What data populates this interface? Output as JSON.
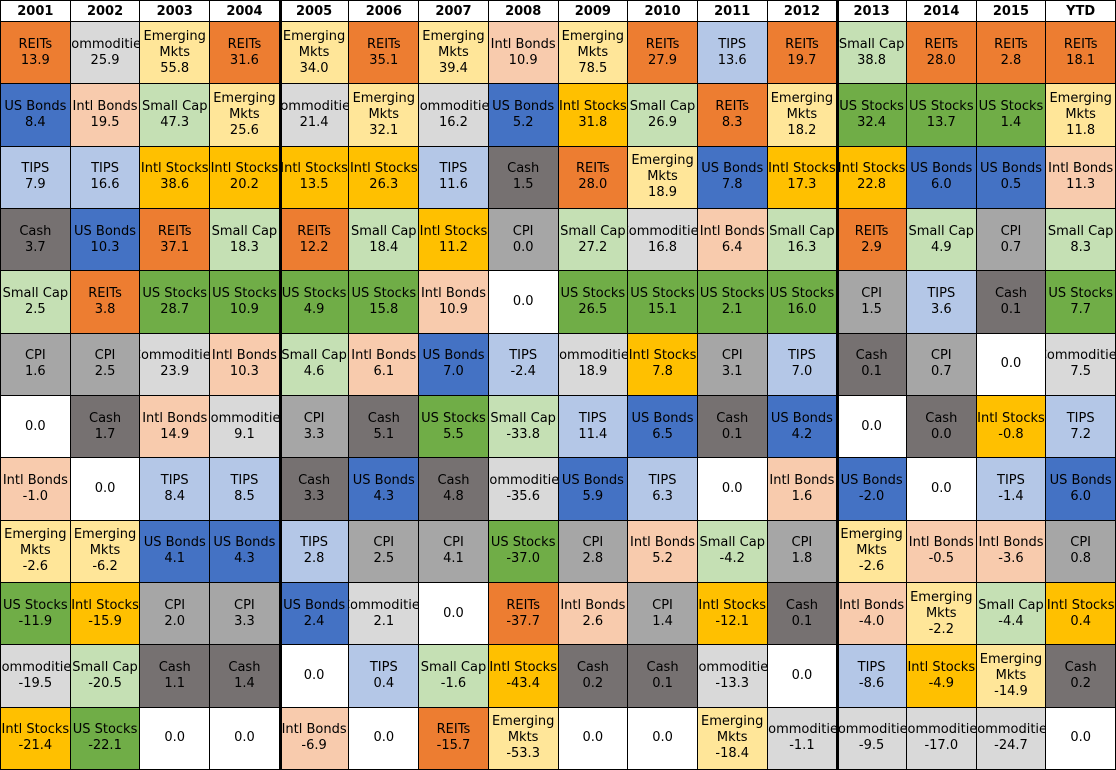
{
  "chart_data": {
    "type": "table",
    "title": "",
    "columns": [
      "2001",
      "2002",
      "2003",
      "2004",
      "2005",
      "2006",
      "2007",
      "2008",
      "2009",
      "2010",
      "2011",
      "2012",
      "2013",
      "2014",
      "2015",
      "YTD"
    ],
    "colors": {
      "REITs": "#ED7D31",
      "Commodities": "#D9D9D9",
      "Emerging Mkts": "#FFE699",
      "Intl Bonds": "#F8CBAD",
      "TIPS": "#B4C7E7",
      "US Bonds": "#4472C4",
      "Small Cap": "#C5E0B4",
      "Intl Stocks": "#FFC000",
      "US Stocks": "#70AD47",
      "Cash": "#767171",
      "CPI": "#A6A6A6"
    },
    "cells": [
      [
        [
          "REITs",
          "13.9"
        ],
        [
          "US Bonds",
          "8.4"
        ],
        [
          "TIPS",
          "7.9"
        ],
        [
          "Cash",
          "3.7"
        ],
        [
          "Small Cap",
          "2.5"
        ],
        [
          "CPI",
          "1.6"
        ],
        [
          "",
          "0.0"
        ],
        [
          "Intl Bonds",
          "-1.0"
        ],
        [
          "Emerging Mkts",
          "-2.6"
        ],
        [
          "US Stocks",
          "-11.9"
        ],
        [
          "Commodities",
          "-19.5"
        ],
        [
          "Intl Stocks",
          "-21.4"
        ]
      ],
      [
        [
          "Commodities",
          "25.9"
        ],
        [
          "Intl Bonds",
          "19.5"
        ],
        [
          "TIPS",
          "16.6"
        ],
        [
          "US Bonds",
          "10.3"
        ],
        [
          "REITs",
          "3.8"
        ],
        [
          "CPI",
          "2.5"
        ],
        [
          "Cash",
          "1.7"
        ],
        [
          "",
          "0.0"
        ],
        [
          "Emerging Mkts",
          "-6.2"
        ],
        [
          "Intl Stocks",
          "-15.9"
        ],
        [
          "Small Cap",
          "-20.5"
        ],
        [
          "US Stocks",
          "-22.1"
        ]
      ],
      [
        [
          "Emerging Mkts",
          "55.8"
        ],
        [
          "Small Cap",
          "47.3"
        ],
        [
          "Intl Stocks",
          "38.6"
        ],
        [
          "REITs",
          "37.1"
        ],
        [
          "US Stocks",
          "28.7"
        ],
        [
          "Commodities",
          "23.9"
        ],
        [
          "Intl Bonds",
          "14.9"
        ],
        [
          "TIPS",
          "8.4"
        ],
        [
          "US Bonds",
          "4.1"
        ],
        [
          "CPI",
          "2.0"
        ],
        [
          "Cash",
          "1.1"
        ],
        [
          "",
          "0.0"
        ]
      ],
      [
        [
          "REITs",
          "31.6"
        ],
        [
          "Emerging Mkts",
          "25.6"
        ],
        [
          "Intl Stocks",
          "20.2"
        ],
        [
          "Small Cap",
          "18.3"
        ],
        [
          "US Stocks",
          "10.9"
        ],
        [
          "Intl Bonds",
          "10.3"
        ],
        [
          "Commodities",
          "9.1"
        ],
        [
          "TIPS",
          "8.5"
        ],
        [
          "US Bonds",
          "4.3"
        ],
        [
          "CPI",
          "3.3"
        ],
        [
          "Cash",
          "1.4"
        ],
        [
          "",
          "0.0"
        ]
      ],
      [
        [
          "Emerging Mkts",
          "34.0"
        ],
        [
          "Commodities",
          "21.4"
        ],
        [
          "Intl Stocks",
          "13.5"
        ],
        [
          "REITs",
          "12.2"
        ],
        [
          "US Stocks",
          "4.9"
        ],
        [
          "Small Cap",
          "4.6"
        ],
        [
          "CPI",
          "3.3"
        ],
        [
          "Cash",
          "3.3"
        ],
        [
          "TIPS",
          "2.8"
        ],
        [
          "US Bonds",
          "2.4"
        ],
        [
          "",
          "0.0"
        ],
        [
          "Intl Bonds",
          "-6.9"
        ]
      ],
      [
        [
          "REITs",
          "35.1"
        ],
        [
          "Emerging Mkts",
          "32.1"
        ],
        [
          "Intl Stocks",
          "26.3"
        ],
        [
          "Small Cap",
          "18.4"
        ],
        [
          "US Stocks",
          "15.8"
        ],
        [
          "Intl Bonds",
          "6.1"
        ],
        [
          "Cash",
          "5.1"
        ],
        [
          "US Bonds",
          "4.3"
        ],
        [
          "CPI",
          "2.5"
        ],
        [
          "Commodities",
          "2.1"
        ],
        [
          "TIPS",
          "0.4"
        ],
        [
          "",
          "0.0"
        ]
      ],
      [
        [
          "Emerging Mkts",
          "39.4"
        ],
        [
          "Commodities",
          "16.2"
        ],
        [
          "TIPS",
          "11.6"
        ],
        [
          "Intl Stocks",
          "11.2"
        ],
        [
          "Intl Bonds",
          "10.9"
        ],
        [
          "US Bonds",
          "7.0"
        ],
        [
          "US Stocks",
          "5.5"
        ],
        [
          "Cash",
          "4.8"
        ],
        [
          "CPI",
          "4.1"
        ],
        [
          "",
          "0.0"
        ],
        [
          "Small Cap",
          "-1.6"
        ],
        [
          "REITs",
          "-15.7"
        ]
      ],
      [
        [
          "Intl Bonds",
          "10.9"
        ],
        [
          "US Bonds",
          "5.2"
        ],
        [
          "Cash",
          "1.5"
        ],
        [
          "CPI",
          "0.0"
        ],
        [
          "",
          "0.0"
        ],
        [
          "TIPS",
          "-2.4"
        ],
        [
          "Small Cap",
          "-33.8"
        ],
        [
          "Commodities",
          "-35.6"
        ],
        [
          "US Stocks",
          "-37.0"
        ],
        [
          "REITs",
          "-37.7"
        ],
        [
          "Intl Stocks",
          "-43.4"
        ],
        [
          "Emerging Mkts",
          "-53.3"
        ]
      ],
      [
        [
          "Emerging Mkts",
          "78.5"
        ],
        [
          "Intl Stocks",
          "31.8"
        ],
        [
          "REITs",
          "28.0"
        ],
        [
          "Small Cap",
          "27.2"
        ],
        [
          "US Stocks",
          "26.5"
        ],
        [
          "Commodities",
          "18.9"
        ],
        [
          "TIPS",
          "11.4"
        ],
        [
          "US Bonds",
          "5.9"
        ],
        [
          "CPI",
          "2.8"
        ],
        [
          "Intl Bonds",
          "2.6"
        ],
        [
          "Cash",
          "0.2"
        ],
        [
          "",
          "0.0"
        ]
      ],
      [
        [
          "REITs",
          "27.9"
        ],
        [
          "Small Cap",
          "26.9"
        ],
        [
          "Emerging Mkts",
          "18.9"
        ],
        [
          "Commodities",
          "16.8"
        ],
        [
          "US Stocks",
          "15.1"
        ],
        [
          "Intl Stocks",
          "7.8"
        ],
        [
          "US Bonds",
          "6.5"
        ],
        [
          "TIPS",
          "6.3"
        ],
        [
          "Intl Bonds",
          "5.2"
        ],
        [
          "CPI",
          "1.4"
        ],
        [
          "Cash",
          "0.1"
        ],
        [
          "",
          "0.0"
        ]
      ],
      [
        [
          "TIPS",
          "13.6"
        ],
        [
          "REITs",
          "8.3"
        ],
        [
          "US Bonds",
          "7.8"
        ],
        [
          "Intl Bonds",
          "6.4"
        ],
        [
          "US Stocks",
          "2.1"
        ],
        [
          "CPI",
          "3.1"
        ],
        [
          "Cash",
          "0.1"
        ],
        [
          "",
          "0.0"
        ],
        [
          "Small Cap",
          "-4.2"
        ],
        [
          "Intl Stocks",
          "-12.1"
        ],
        [
          "Commodities",
          "-13.3"
        ],
        [
          "Emerging Mkts",
          "-18.4"
        ]
      ],
      [
        [
          "REITs",
          "19.7"
        ],
        [
          "Emerging Mkts",
          "18.2"
        ],
        [
          "Intl Stocks",
          "17.3"
        ],
        [
          "Small Cap",
          "16.3"
        ],
        [
          "US Stocks",
          "16.0"
        ],
        [
          "TIPS",
          "7.0"
        ],
        [
          "US Bonds",
          "4.2"
        ],
        [
          "Intl Bonds",
          "1.6"
        ],
        [
          "CPI",
          "1.8"
        ],
        [
          "Cash",
          "0.1"
        ],
        [
          "",
          "0.0"
        ],
        [
          "Commodities",
          "-1.1"
        ]
      ],
      [
        [
          "Small Cap",
          "38.8"
        ],
        [
          "US Stocks",
          "32.4"
        ],
        [
          "Intl Stocks",
          "22.8"
        ],
        [
          "REITs",
          "2.9"
        ],
        [
          "CPI",
          "1.5"
        ],
        [
          "Cash",
          "0.1"
        ],
        [
          "",
          "0.0"
        ],
        [
          "US Bonds",
          "-2.0"
        ],
        [
          "Emerging Mkts",
          "-2.6"
        ],
        [
          "Intl Bonds",
          "-4.0"
        ],
        [
          "TIPS",
          "-8.6"
        ],
        [
          "Commodities",
          "-9.5"
        ]
      ],
      [
        [
          "REITs",
          "28.0"
        ],
        [
          "US Stocks",
          "13.7"
        ],
        [
          "US Bonds",
          "6.0"
        ],
        [
          "Small Cap",
          "4.9"
        ],
        [
          "TIPS",
          "3.6"
        ],
        [
          "CPI",
          "0.7"
        ],
        [
          "Cash",
          "0.0"
        ],
        [
          "",
          "0.0"
        ],
        [
          "Intl Bonds",
          "-0.5"
        ],
        [
          "Emerging Mkts",
          "-2.2"
        ],
        [
          "Intl Stocks",
          "-4.9"
        ],
        [
          "Commodities",
          "-17.0"
        ]
      ],
      [
        [
          "REITs",
          "2.8"
        ],
        [
          "US Stocks",
          "1.4"
        ],
        [
          "US Bonds",
          "0.5"
        ],
        [
          "CPI",
          "0.7"
        ],
        [
          "Cash",
          "0.1"
        ],
        [
          "",
          "0.0"
        ],
        [
          "Intl Stocks",
          "-0.8"
        ],
        [
          "TIPS",
          "-1.4"
        ],
        [
          "Intl Bonds",
          "-3.6"
        ],
        [
          "Small Cap",
          "-4.4"
        ],
        [
          "Emerging Mkts",
          "-14.9"
        ],
        [
          "Commodities",
          "-24.7"
        ]
      ],
      [
        [
          "REITs",
          "18.1"
        ],
        [
          "Emerging Mkts",
          "11.8"
        ],
        [
          "Intl Bonds",
          "11.3"
        ],
        [
          "Small Cap",
          "8.3"
        ],
        [
          "US Stocks",
          "7.7"
        ],
        [
          "Commodities",
          "7.5"
        ],
        [
          "TIPS",
          "7.2"
        ],
        [
          "US Bonds",
          "6.0"
        ],
        [
          "CPI",
          "0.8"
        ],
        [
          "Intl Stocks",
          "0.4"
        ],
        [
          "Cash",
          "0.2"
        ],
        [
          "",
          "0.0"
        ]
      ]
    ]
  }
}
